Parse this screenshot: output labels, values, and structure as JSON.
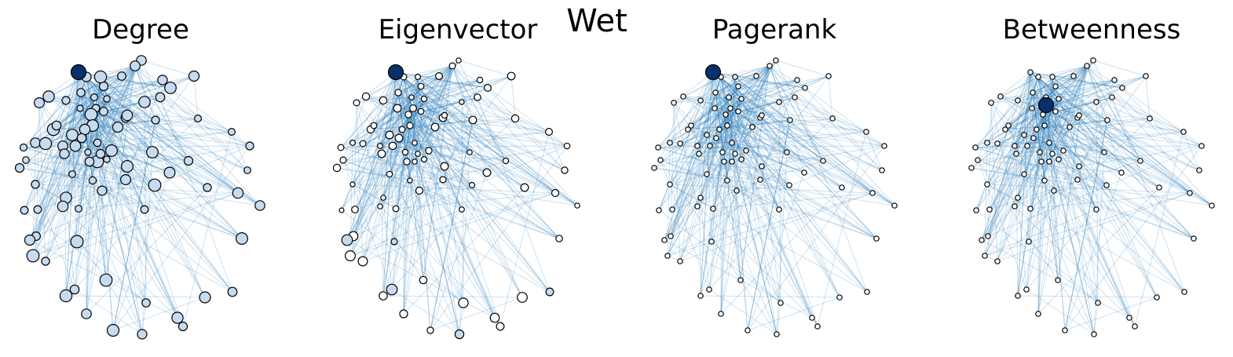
{
  "figure_title": "Wet",
  "panels": [
    {
      "title": "Degree"
    },
    {
      "title": "Eigenvector"
    },
    {
      "title": "Pagerank"
    },
    {
      "title": "Betweenness"
    }
  ],
  "colors": {
    "edge": "#1f77b4",
    "highlight_node": "#08306b",
    "node_light": "#c6dbef",
    "node_white": "#ffffff",
    "node_stroke": "#000000"
  }
}
